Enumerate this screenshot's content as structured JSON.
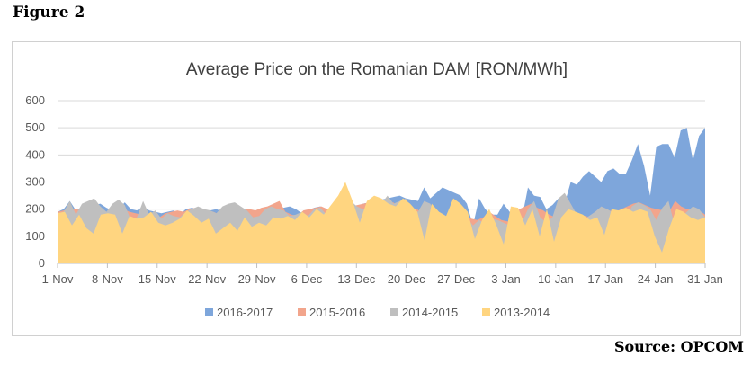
{
  "figure_label": "Figure 2",
  "source_label": "Source: OPCOM",
  "chart_data": {
    "type": "area",
    "title": "Average Price on the Romanian DAM [RON/MWh]",
    "xlabel": "",
    "ylabel": "",
    "ylim": [
      0,
      600
    ],
    "yticks": [
      0,
      100,
      200,
      300,
      400,
      500,
      600
    ],
    "x_ticks": [
      "1-Nov",
      "8-Nov",
      "15-Nov",
      "22-Nov",
      "29-Nov",
      "6-Dec",
      "13-Dec",
      "20-Dec",
      "27-Dec",
      "3-Jan",
      "10-Jan",
      "17-Jan",
      "24-Jan",
      "31-Jan"
    ],
    "x_days": 92,
    "legend_position": "bottom",
    "series": [
      {
        "name": "2016-2017",
        "color": "#7EA6DB",
        "values": [
          190,
          200,
          230,
          195,
          205,
          210,
          215,
          220,
          205,
          195,
          200,
          225,
          200,
          195,
          210,
          195,
          190,
          185,
          190,
          195,
          180,
          200,
          205,
          200,
          195,
          195,
          200,
          190,
          185,
          195,
          200,
          190,
          185,
          170,
          190,
          195,
          200,
          205,
          210,
          200,
          185,
          195,
          205,
          210,
          200,
          195,
          200,
          205,
          210,
          205,
          220,
          225,
          230,
          235,
          240,
          245,
          250,
          240,
          235,
          230,
          280,
          240,
          260,
          280,
          270,
          260,
          250,
          220,
          140,
          240,
          200,
          180,
          180,
          220,
          190,
          175,
          165,
          280,
          250,
          245,
          200,
          215,
          240,
          220,
          300,
          290,
          320,
          340,
          320,
          300,
          340,
          350,
          330,
          330,
          380,
          440,
          360,
          250,
          430,
          440,
          440,
          390,
          490,
          500,
          380,
          470,
          500
        ]
      },
      {
        "name": "2015-2016",
        "color": "#F2A58C",
        "values": [
          190,
          195,
          200,
          200,
          195,
          200,
          195,
          190,
          185,
          180,
          185,
          200,
          190,
          185,
          180,
          175,
          180,
          170,
          185,
          190,
          195,
          190,
          200,
          205,
          195,
          185,
          190,
          180,
          175,
          180,
          190,
          200,
          200,
          195,
          205,
          210,
          220,
          230,
          190,
          180,
          175,
          195,
          200,
          205,
          210,
          200,
          195,
          200,
          205,
          210,
          215,
          220,
          225,
          215,
          210,
          220,
          225,
          200,
          175,
          180,
          200,
          175,
          190,
          180,
          170,
          165,
          180,
          175,
          170,
          165,
          160,
          170,
          190,
          175,
          160,
          155,
          150,
          200,
          210,
          220,
          205,
          195,
          180,
          170,
          175,
          160,
          165,
          180,
          175,
          170,
          190,
          200,
          195,
          190,
          200,
          210,
          220,
          225,
          215,
          205,
          200,
          195,
          190,
          230,
          210,
          200,
          200,
          195,
          180
        ]
      },
      {
        "name": "2014-2015",
        "color": "#BFBFBF",
        "values": [
          185,
          190,
          230,
          180,
          220,
          230,
          240,
          210,
          190,
          220,
          235,
          215,
          160,
          170,
          230,
          180,
          195,
          165,
          185,
          175,
          170,
          190,
          200,
          210,
          200,
          195,
          185,
          210,
          220,
          225,
          210,
          195,
          170,
          175,
          200,
          210,
          200,
          195,
          175,
          180,
          190,
          175,
          200,
          205,
          180,
          170,
          210,
          220,
          230,
          210,
          200,
          190,
          180,
          220,
          250,
          220,
          230,
          240,
          200,
          190,
          230,
          220,
          180,
          160,
          175,
          150,
          165,
          170,
          140,
          160,
          145,
          165,
          160,
          150,
          140,
          135,
          150,
          200,
          230,
          170,
          150,
          170,
          240,
          260,
          220,
          180,
          160,
          175,
          190,
          210,
          200,
          185,
          170,
          160,
          210,
          225,
          215,
          200,
          160,
          205,
          230,
          140,
          170,
          190,
          210,
          200,
          170
        ]
      },
      {
        "name": "2013-2014",
        "color": "#FFD580",
        "values": [
          185,
          190,
          140,
          180,
          130,
          110,
          180,
          185,
          180,
          110,
          175,
          165,
          170,
          190,
          150,
          140,
          150,
          165,
          195,
          175,
          150,
          165,
          110,
          130,
          150,
          120,
          170,
          135,
          150,
          140,
          170,
          165,
          175,
          160,
          190,
          170,
          200,
          180,
          215,
          250,
          300,
          230,
          150,
          230,
          250,
          240,
          220,
          210,
          240,
          220,
          190,
          85,
          220,
          190,
          175,
          240,
          220,
          190,
          90,
          160,
          200,
          140,
          70,
          210,
          205,
          140,
          200,
          100,
          200,
          80,
          170,
          200,
          190,
          180,
          160,
          170,
          105,
          200,
          195,
          205,
          190,
          200,
          190,
          100,
          40,
          130,
          200,
          190,
          170,
          160,
          170
        ]
      }
    ]
  }
}
